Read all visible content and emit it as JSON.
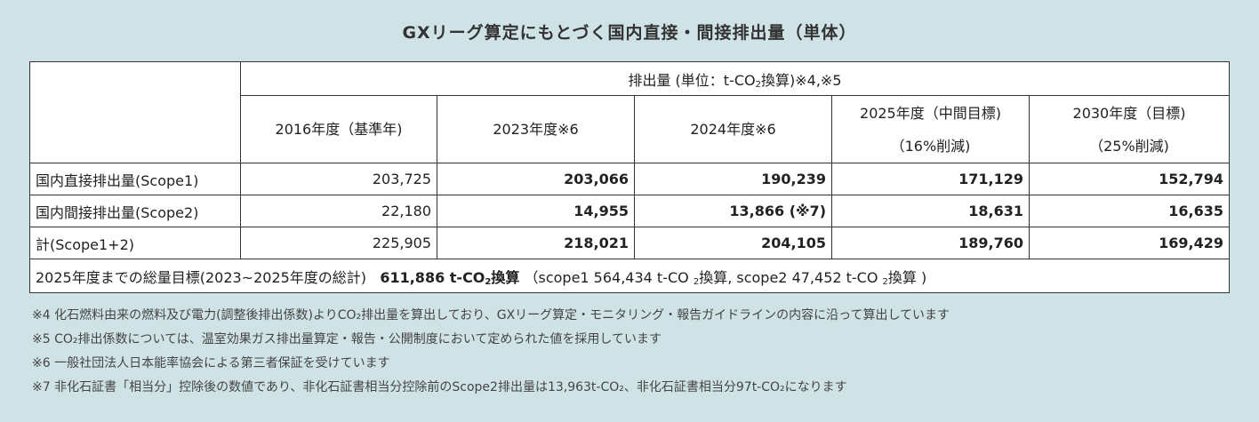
{
  "title": "GXリーグ算定にもとづく国内直接・間接排出量（単体）",
  "header": {
    "unit_pre": "排出量 (単位：t-CO",
    "unit_sub": "2",
    "unit_post": "換算)※4,※5",
    "columns": [
      {
        "line1": "2016年度（基準年)",
        "line2": ""
      },
      {
        "line1": "2023年度※6",
        "line2": ""
      },
      {
        "line1": "2024年度※6",
        "line2": ""
      },
      {
        "line1": "2025年度（中間目標)",
        "line2": "（16%削減)"
      },
      {
        "line1": "2030年度（目標)",
        "line2": "（25%削減)"
      }
    ]
  },
  "rows": [
    {
      "label": "国内直接排出量(Scope1)",
      "values": [
        "203,725",
        "203,066",
        "190,239",
        "171,129",
        "152,794"
      ]
    },
    {
      "label": "国内間接排出量(Scope2)",
      "values": [
        "22,180",
        "14,955",
        "13,866 (※7)",
        "18,631",
        "16,635"
      ]
    },
    {
      "label": "計(Scope1+2)",
      "values": [
        "225,905",
        "218,021",
        "204,105",
        "189,760",
        "169,429"
      ]
    }
  ],
  "total_target": {
    "label": "2025年度までの総量目標(2023~2025年度の総計)",
    "value_pre": "611,886 t-CO",
    "value_sub": "2",
    "value_post": "換算",
    "detail_a": "（scope1 564,434 t-CO ",
    "detail_a_sub": "2",
    "detail_b": "換算, scope2 47,452 t-CO ",
    "detail_b_sub": "2",
    "detail_c": "換算 )"
  },
  "notes": [
    "※4 化石燃料由来の燃料及び電力(調整後排出係数)よりCO₂排出量を算出しており、GXリーグ算定・モニタリング・報告ガイドラインの内容に沿って算出しています",
    "※5 CO₂排出係数については、温室効果ガス排出量算定・報告・公開制度において定められた値を採用しています",
    "※6 一般社団法人日本能率協会による第三者保証を受けています",
    "※7 非化石証書「相当分」控除後の数値であり、非化石証書相当分控除前のScope2排出量は13,963t-CO₂、非化石証書相当分97t-CO₂になります"
  ]
}
